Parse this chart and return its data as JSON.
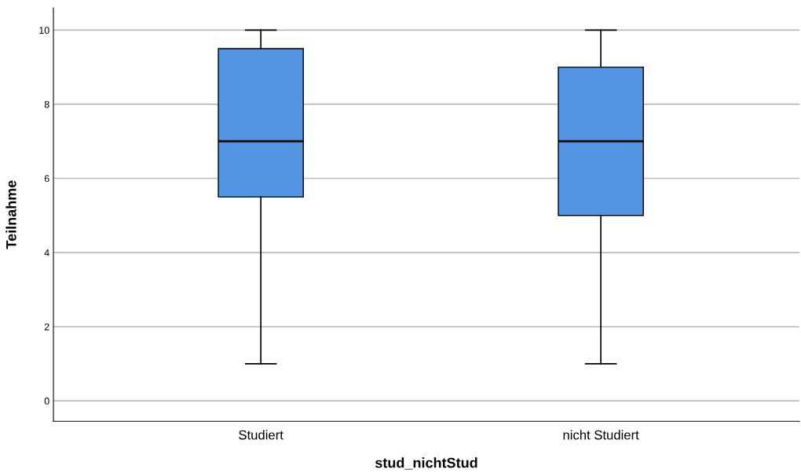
{
  "chart_data": {
    "type": "box",
    "xlabel": "stud_nichtStud",
    "ylabel": "Teilnahme",
    "categories": [
      "Studiert",
      "nicht Studiert"
    ],
    "boxes": [
      {
        "low": 1,
        "q1": 5.5,
        "median": 7,
        "q3": 9.5,
        "high": 10
      },
      {
        "low": 1,
        "q1": 5,
        "median": 7,
        "q3": 9,
        "high": 10
      }
    ],
    "color": "#5294e2",
    "ylim": [
      -0.55,
      10.6
    ],
    "yticks": [
      0,
      2,
      4,
      6,
      8,
      10
    ],
    "grid": "y"
  }
}
